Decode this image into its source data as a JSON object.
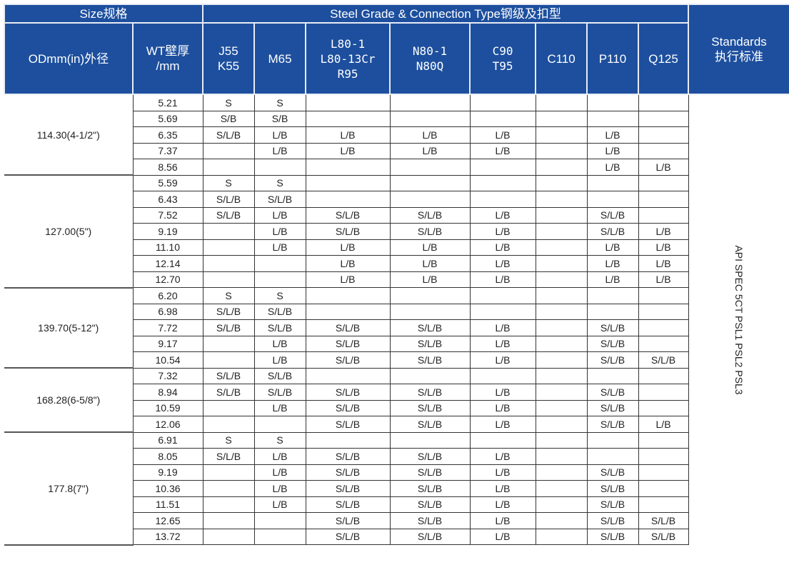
{
  "header": {
    "size": "Size规格",
    "steel_grade": "Steel Grade & Connection Type钢级及扣型",
    "standards": "Standards\n执行标准",
    "od": "ODmm(in)外径",
    "wt": "WT壁厚\n/mm",
    "grades": [
      "J55\nK55",
      "M65",
      "L80-1\nL80-13Cr\nR95",
      "N80-1\nN80Q",
      "C90\nT95",
      "C110",
      "P110",
      "Q125"
    ]
  },
  "standard_value": "API SPEC 5CT PSL1 PSL2 PSL3",
  "colors": {
    "header_bg": "#1d4f9e",
    "header_text": "#ffffff"
  },
  "groups": [
    {
      "od": "114.30(4-1/2\")",
      "rows": [
        {
          "wt": "5.21",
          "c": [
            "S",
            "S",
            "",
            "",
            "",
            "",
            "",
            ""
          ]
        },
        {
          "wt": "5.69",
          "c": [
            "S/B",
            "S/B",
            "",
            "",
            "",
            "",
            "",
            ""
          ]
        },
        {
          "wt": "6.35",
          "c": [
            "S/L/B",
            "L/B",
            "L/B",
            "L/B",
            "L/B",
            "",
            "L/B",
            ""
          ]
        },
        {
          "wt": "7.37",
          "c": [
            "",
            "L/B",
            "L/B",
            "L/B",
            "L/B",
            "",
            "L/B",
            ""
          ]
        },
        {
          "wt": "8.56",
          "c": [
            "",
            "",
            "",
            "",
            "",
            "",
            "L/B",
            "L/B"
          ]
        }
      ]
    },
    {
      "od": "127.00(5\")",
      "rows": [
        {
          "wt": "5.59",
          "c": [
            "S",
            "S",
            "",
            "",
            "",
            "",
            "",
            ""
          ]
        },
        {
          "wt": "6.43",
          "c": [
            "S/L/B",
            "S/L/B",
            "",
            "",
            "",
            "",
            "",
            ""
          ]
        },
        {
          "wt": "7.52",
          "c": [
            "S/L/B",
            "L/B",
            "S/L/B",
            "S/L/B",
            "L/B",
            "",
            "S/L/B",
            ""
          ]
        },
        {
          "wt": "9.19",
          "c": [
            "",
            "L/B",
            "S/L/B",
            "S/L/B",
            "L/B",
            "",
            "S/L/B",
            "L/B"
          ]
        },
        {
          "wt": "11.10",
          "c": [
            "",
            "L/B",
            "L/B",
            "L/B",
            "L/B",
            "",
            "L/B",
            "L/B"
          ]
        },
        {
          "wt": "12.14",
          "c": [
            "",
            "",
            "L/B",
            "L/B",
            "L/B",
            "",
            "L/B",
            "L/B"
          ]
        },
        {
          "wt": "12.70",
          "c": [
            "",
            "",
            "L/B",
            "L/B",
            "L/B",
            "",
            "L/B",
            "L/B"
          ]
        }
      ]
    },
    {
      "od": "139.70(5-12\")",
      "rows": [
        {
          "wt": "6.20",
          "c": [
            "S",
            "S",
            "",
            "",
            "",
            "",
            "",
            ""
          ]
        },
        {
          "wt": "6.98",
          "c": [
            "S/L/B",
            "S/L/B",
            "",
            "",
            "",
            "",
            "",
            ""
          ]
        },
        {
          "wt": "7.72",
          "c": [
            "S/L/B",
            "S/L/B",
            "S/L/B",
            "S/L/B",
            "L/B",
            "",
            "S/L/B",
            ""
          ]
        },
        {
          "wt": "9.17",
          "c": [
            "",
            "L/B",
            "S/L/B",
            "S/L/B",
            "L/B",
            "",
            "S/L/B",
            ""
          ]
        },
        {
          "wt": "10.54",
          "c": [
            "",
            "L/B",
            "S/L/B",
            "S/L/B",
            "L/B",
            "",
            "S/L/B",
            "S/L/B"
          ]
        }
      ]
    },
    {
      "od": "168.28(6-5/8\")",
      "rows": [
        {
          "wt": "7.32",
          "c": [
            "S/L/B",
            "S/L/B",
            "",
            "",
            "",
            "",
            "",
            ""
          ]
        },
        {
          "wt": "8.94",
          "c": [
            "S/L/B",
            "S/L/B",
            "S/L/B",
            "S/L/B",
            "L/B",
            "",
            "S/L/B",
            ""
          ]
        },
        {
          "wt": "10.59",
          "c": [
            "",
            "L/B",
            "S/L/B",
            "S/L/B",
            "L/B",
            "",
            "S/L/B",
            ""
          ]
        },
        {
          "wt": "12.06",
          "c": [
            "",
            "",
            "S/L/B",
            "S/L/B",
            "L/B",
            "",
            "S/L/B",
            "L/B"
          ]
        }
      ]
    },
    {
      "od": "177.8(7\")",
      "rows": [
        {
          "wt": "6.91",
          "c": [
            "S",
            "S",
            "",
            "",
            "",
            "",
            "",
            ""
          ]
        },
        {
          "wt": "8.05",
          "c": [
            "S/L/B",
            "L/B",
            "S/L/B",
            "S/L/B",
            "L/B",
            "",
            "",
            ""
          ]
        },
        {
          "wt": "9.19",
          "c": [
            "",
            "L/B",
            "S/L/B",
            "S/L/B",
            "L/B",
            "",
            "S/L/B",
            ""
          ]
        },
        {
          "wt": "10.36",
          "c": [
            "",
            "L/B",
            "S/L/B",
            "S/L/B",
            "L/B",
            "",
            "S/L/B",
            ""
          ]
        },
        {
          "wt": "11.51",
          "c": [
            "",
            "L/B",
            "S/L/B",
            "S/L/B",
            "L/B",
            "",
            "S/L/B",
            ""
          ]
        },
        {
          "wt": "12.65",
          "c": [
            "",
            "",
            "S/L/B",
            "S/L/B",
            "L/B",
            "",
            "S/L/B",
            "S/L/B"
          ]
        },
        {
          "wt": "13.72",
          "c": [
            "",
            "",
            "S/L/B",
            "S/L/B",
            "L/B",
            "",
            "S/L/B",
            "S/L/B"
          ]
        }
      ]
    }
  ]
}
